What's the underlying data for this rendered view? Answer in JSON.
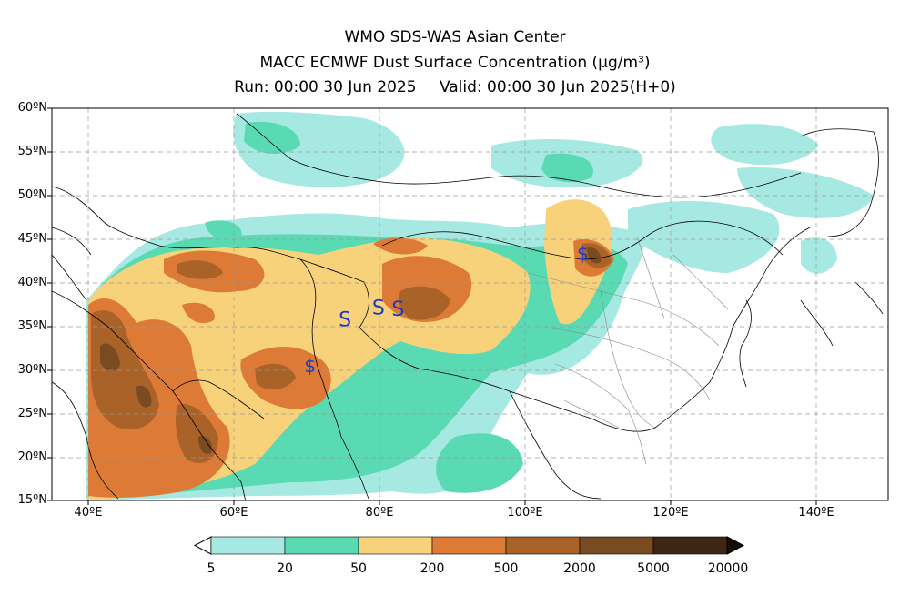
{
  "header": {
    "line1": "WMO SDS-WAS Asian Center",
    "line2": "MACC ECMWF Dust Surface Concentration (μg/m³)",
    "run": "Run: 00:00 30 Jun 2025",
    "valid": "Valid: 00:00 30 Jun 2025(H+0)"
  },
  "map": {
    "lat_labels": [
      "60ºN",
      "55ºN",
      "50ºN",
      "45ºN",
      "40ºN",
      "35ºN",
      "30ºN",
      "25ºN",
      "20ºN",
      "15ºN"
    ],
    "lon_labels": [
      "40ºE",
      "60ºE",
      "80ºE",
      "100ºE",
      "120ºE",
      "140ºE"
    ],
    "lon_range": [
      35,
      150
    ],
    "lat_range": [
      15,
      60
    ],
    "gridlines": true,
    "dust_storm_symbols": [
      {
        "symbol": "$",
        "lon": 108.0,
        "lat": 43.2
      },
      {
        "symbol": "$",
        "lon": 70.5,
        "lat": 30.3
      },
      {
        "symbol": "S",
        "lon": 75.3,
        "lat": 35.6
      },
      {
        "symbol": "S",
        "lon": 79.9,
        "lat": 37.0
      },
      {
        "symbol": "S",
        "lon": 82.6,
        "lat": 36.8
      }
    ]
  },
  "colorbar": {
    "labels": [
      "5",
      "20",
      "50",
      "200",
      "500",
      "2000",
      "5000",
      "20000"
    ],
    "colors": [
      "#a6e9e2",
      "#59dab3",
      "#f7d27b",
      "#dd7a36",
      "#a96228",
      "#7a4a20",
      "#3f2514"
    ],
    "under_color": "#ffffff",
    "over_color": "#140c05"
  }
}
